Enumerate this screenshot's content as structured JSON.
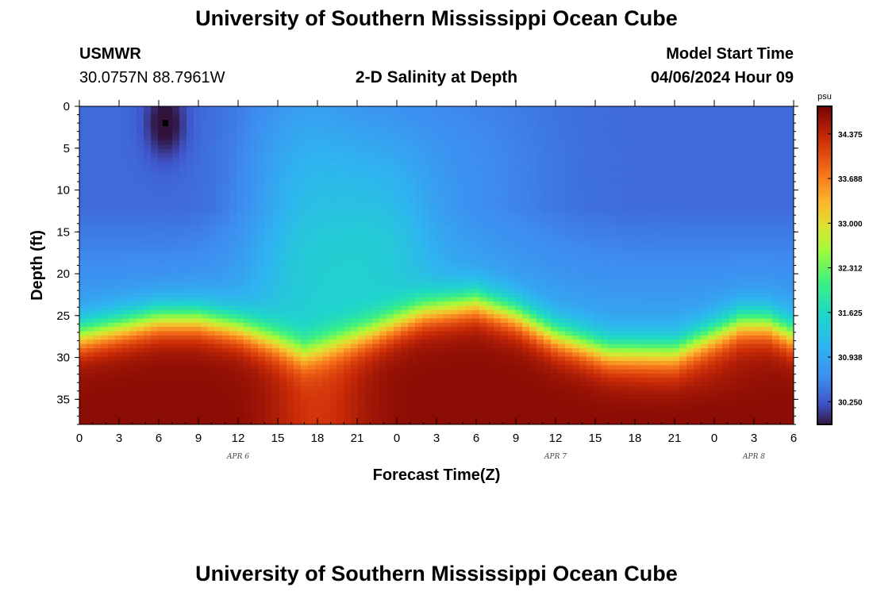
{
  "header": {
    "title": "University of Southern Mississippi Ocean Cube",
    "station": "USMWR",
    "coords": "30.0757N  88.7961W",
    "subtitle": "2-D Salinity at Depth",
    "model_label": "Model Start Time",
    "model_time": "04/06/2024 Hour 09"
  },
  "footer": {
    "title": "University of Southern Mississippi Ocean Cube"
  },
  "chart_data": {
    "type": "heatmap",
    "title": "2-D Salinity at Depth",
    "xlabel": "Forecast Time(Z)",
    "ylabel": "Depth (ft)",
    "x_unit": "hours since 04/06 00Z",
    "xlim": [
      0,
      54
    ],
    "ylim": [
      38,
      0
    ],
    "x_ticks": [
      0,
      3,
      6,
      9,
      12,
      15,
      18,
      21,
      24,
      27,
      30,
      33,
      36,
      39,
      42,
      45,
      48,
      51,
      54
    ],
    "x_tick_labels": [
      "0",
      "3",
      "6",
      "9",
      "12",
      "15",
      "18",
      "21",
      "0",
      "3",
      "6",
      "9",
      "12",
      "15",
      "18",
      "21",
      "0",
      "3",
      "6"
    ],
    "y_ticks": [
      0,
      5,
      10,
      15,
      20,
      25,
      30,
      35
    ],
    "y_tick_labels": [
      "0",
      "5",
      "10",
      "15",
      "20",
      "25",
      "30",
      "35"
    ],
    "date_labels": [
      {
        "text": "APR 6",
        "hour": 12
      },
      {
        "text": "APR 7",
        "hour": 36
      },
      {
        "text": "APR 8",
        "hour": 51
      }
    ],
    "colorbar": {
      "unit": "psu",
      "min": 29.9,
      "max": 34.8,
      "ticks": [
        34.375,
        33.688,
        33.0,
        32.312,
        31.625,
        30.938,
        30.25
      ],
      "tick_labels": [
        "34.375",
        "33.688",
        "33.000",
        "32.312",
        "31.625",
        "30.938",
        "30.250"
      ]
    },
    "halocline_depth_ft": {
      "hours": [
        0,
        3,
        6,
        9,
        12,
        15,
        17,
        19,
        22,
        26,
        30,
        33,
        36,
        40,
        45,
        50,
        52,
        54
      ],
      "depths": [
        27.5,
        26.5,
        25.5,
        25.5,
        26.5,
        28.2,
        29.5,
        28.5,
        27,
        24.5,
        23.5,
        25,
        27.5,
        29.5,
        29.5,
        26,
        26,
        27.5
      ]
    },
    "features": {
      "surface_minimum_psu": 29.9,
      "surface_minimum_hour": 6.5,
      "surface_minimum_depth_ft": 2,
      "bottom_maximum_psu": 34.7,
      "fresh_upper_layer_psu": 30.4,
      "mid_column_psu": 31.1
    }
  }
}
